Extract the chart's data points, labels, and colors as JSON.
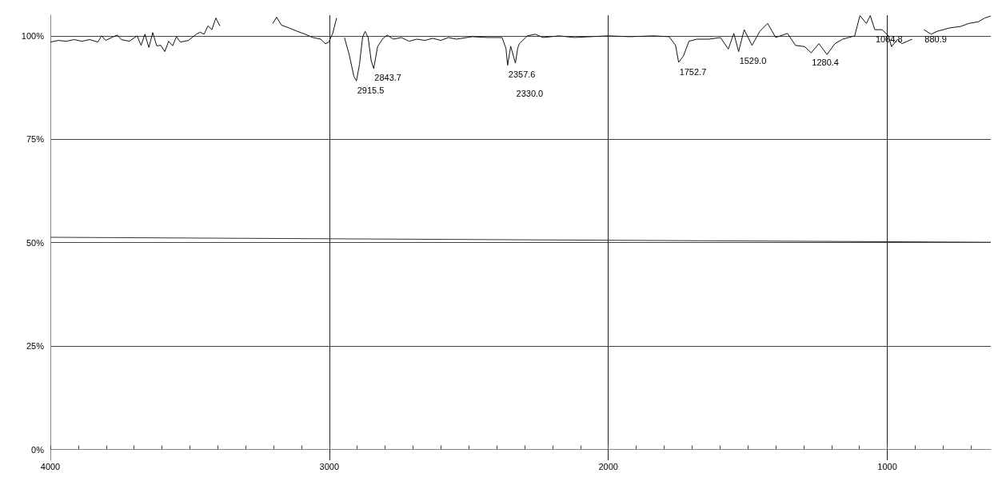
{
  "chart_data": {
    "type": "line",
    "xlim": [
      4000,
      629
    ],
    "ylim": [
      -2.6,
      105
    ],
    "xticks": [
      4000,
      {
        "value": 3900,
        "label": null
      },
      {
        "value": 3800,
        "label": null
      },
      {
        "value": 3700,
        "label": null
      },
      {
        "value": 3600,
        "label": null
      },
      {
        "value": 3500,
        "label": null
      },
      {
        "value": 3400,
        "label": null
      },
      {
        "value": 3300,
        "label": null
      },
      {
        "value": 3200,
        "label": null
      },
      {
        "value": 3100,
        "label": null
      },
      3000,
      {
        "value": 2900,
        "label": null
      },
      {
        "value": 2800,
        "label": null
      },
      {
        "value": 2700,
        "label": null
      },
      {
        "value": 2600,
        "label": null
      },
      {
        "value": 2500,
        "label": null
      },
      {
        "value": 2400,
        "label": null
      },
      {
        "value": 2300,
        "label": null
      },
      {
        "value": 2200,
        "label": null
      },
      {
        "value": 2100,
        "label": null
      },
      2000,
      {
        "value": 1900,
        "label": null
      },
      {
        "value": 1800,
        "label": null
      },
      {
        "value": 1700,
        "label": null
      },
      {
        "value": 1600,
        "label": null
      },
      {
        "value": 1500,
        "label": null
      },
      {
        "value": 1400,
        "label": null
      },
      {
        "value": 1300,
        "label": null
      },
      {
        "value": 1200,
        "label": null
      },
      {
        "value": 1100,
        "label": null
      },
      1000,
      {
        "value": 900,
        "label": null
      },
      {
        "value": 800,
        "label": null
      },
      {
        "value": 700,
        "label": null
      }
    ],
    "yticks": [
      {
        "value": 0,
        "label": "0%"
      },
      {
        "value": 25,
        "label": "25%"
      },
      {
        "value": 50,
        "label": "50%"
      },
      {
        "value": 75,
        "label": "75%"
      },
      {
        "value": 100,
        "label": "100%"
      }
    ],
    "grid": true,
    "marker": "none",
    "line_style": "solid",
    "series": [
      {
        "color": "#111111",
        "x": [
          4000,
          3972,
          3943,
          3915,
          3887,
          3859,
          3830,
          3816,
          3802,
          3774,
          3760,
          3746,
          3717,
          3689,
          3675,
          3661,
          3647,
          3633,
          3619,
          3604,
          3590,
          3576,
          3562,
          3548,
          3534,
          3505,
          3477,
          3463,
          3449,
          3435,
          3421,
          3407,
          3392,
          3375,
          3214,
          3203,
          3189,
          3172,
          3144,
          3115,
          3087,
          3059,
          3031,
          3014,
          3002,
          2988,
          2974,
          2969,
          2957,
          2946,
          2929,
          2912,
          2903,
          2892,
          2881,
          2872,
          2861,
          2850,
          2841,
          2827,
          2810,
          2793,
          2771,
          2742,
          2714,
          2686,
          2658,
          2629,
          2601,
          2573,
          2545,
          2488,
          2432,
          2381,
          2367,
          2361,
          2350,
          2333,
          2325,
          2319,
          2290,
          2262,
          2234,
          2177,
          2121,
          2064,
          2002,
          1923,
          1838,
          1782,
          1759,
          1748,
          1731,
          1711,
          1683,
          1640,
          1598,
          1570,
          1550,
          1533,
          1513,
          1485,
          1457,
          1429,
          1400,
          1358,
          1329,
          1296,
          1273,
          1245,
          1216,
          1188,
          1160,
          1117,
          1098,
          1075,
          1061,
          1045,
          1019,
          996,
          985,
          963,
          948,
          911,
          891,
          877,
          869,
          843,
          821,
          778,
          736,
          708,
          674,
          651,
          629
        ],
        "values": [
          98.5,
          98.9,
          98.7,
          99.1,
          98.7,
          99.1,
          98.5,
          100.0,
          98.9,
          99.8,
          100.2,
          99.1,
          98.7,
          100.0,
          97.7,
          100.4,
          97.2,
          100.8,
          97.6,
          97.7,
          96.2,
          98.7,
          97.6,
          99.8,
          98.5,
          98.9,
          100.4,
          100.9,
          100.4,
          102.4,
          101.5,
          104.3,
          102.4,
          null,
          null,
          103.0,
          104.5,
          102.6,
          101.9,
          101.1,
          100.4,
          99.6,
          99.2,
          98.1,
          98.5,
          100.6,
          104.3,
          null,
          null,
          99.6,
          95.5,
          90.2,
          89.1,
          93.1,
          99.6,
          101.1,
          99.6,
          94.0,
          92.1,
          97.4,
          99.2,
          100.2,
          99.2,
          99.6,
          98.7,
          99.2,
          98.9,
          99.4,
          98.9,
          99.6,
          99.2,
          99.8,
          99.6,
          99.6,
          97.0,
          92.9,
          97.5,
          93.4,
          97.0,
          98.1,
          100.0,
          100.4,
          99.6,
          100.0,
          99.6,
          99.8,
          100.0,
          99.8,
          100.0,
          99.8,
          97.7,
          93.6,
          95.1,
          98.7,
          99.2,
          99.2,
          99.6,
          96.8,
          100.6,
          96.2,
          101.5,
          97.7,
          101.1,
          103.0,
          99.6,
          100.6,
          97.7,
          97.4,
          95.9,
          98.1,
          95.5,
          98.1,
          99.2,
          100.0,
          104.9,
          103.0,
          104.9,
          101.5,
          101.5,
          100.0,
          97.4,
          99.2,
          98.1,
          99.2,
          null,
          null,
          101.5,
          100.4,
          101.1,
          101.9,
          102.3,
          103.0,
          103.4,
          104.3,
          104.8
        ]
      },
      {
        "color": "#333333",
        "x": [
          4000,
          629
        ],
        "values": [
          51.3,
          50.1
        ]
      }
    ],
    "annotations": [
      {
        "text": "2915.5",
        "x": 2903,
        "y": 89.1
      },
      {
        "text": "2843.7",
        "x": 2841,
        "y": 92.1
      },
      {
        "text": "2357.6",
        "x": 2361,
        "y": 92.9
      },
      {
        "text": "2330.0",
        "x": 2333,
        "y": 93.4
      },
      {
        "text": "1752.7",
        "x": 1748,
        "y": 93.6
      },
      {
        "text": "1529.0",
        "x": 1533,
        "y": 96.2
      },
      {
        "text": "1280.4",
        "x": 1273,
        "y": 95.9
      },
      {
        "text": "1064.8",
        "x": 1045,
        "y": 101.5
      },
      {
        "text": "880.9",
        "x": 869,
        "y": 101.5
      }
    ]
  }
}
